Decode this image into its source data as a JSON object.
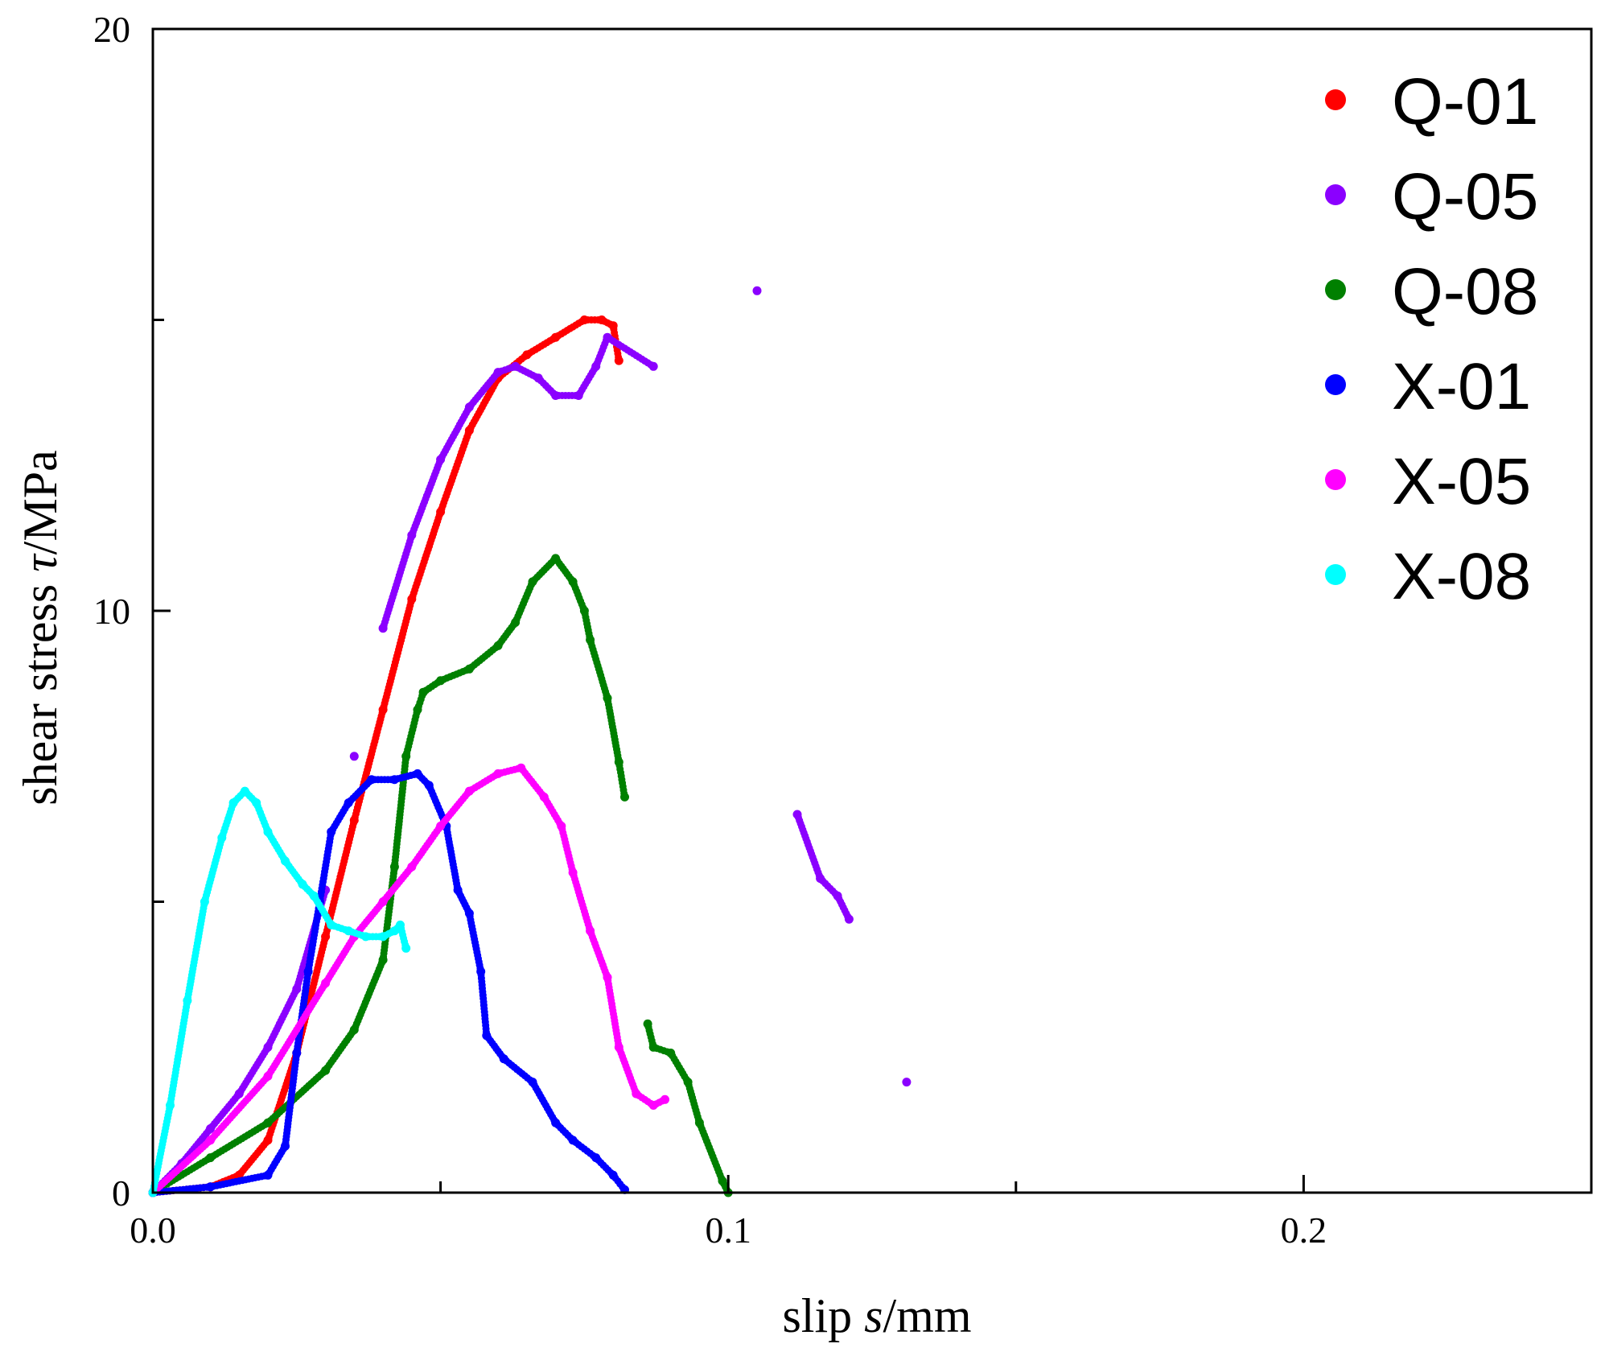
{
  "chart_data": {
    "type": "scatter",
    "title": "",
    "xlabel_parts": [
      "slip ",
      "s",
      "/mm"
    ],
    "ylabel_parts": [
      "shear stress ",
      "τ",
      "/MPa"
    ],
    "xlim": [
      0,
      0.25
    ],
    "ylim": [
      0,
      20
    ],
    "x_ticks": [
      {
        "value": 0,
        "label": "0.0"
      },
      {
        "value": 0.1,
        "label": "0.1"
      },
      {
        "value": 0.2,
        "label": "0.2"
      }
    ],
    "x_minor_ticks": [
      0.05,
      0.15
    ],
    "y_ticks": [
      {
        "value": 0,
        "label": "0"
      },
      {
        "value": 10,
        "label": "10"
      },
      {
        "value": 20,
        "label": "20"
      }
    ],
    "y_minor_ticks": [
      5,
      15
    ],
    "grid": false,
    "legend_position": "top-right",
    "series": [
      {
        "name": "Q-01",
        "color": "#ff0000",
        "points": [
          [
            0,
            0
          ],
          [
            0.01,
            0.1
          ],
          [
            0.015,
            0.3
          ],
          [
            0.02,
            0.9
          ],
          [
            0.025,
            2.4
          ],
          [
            0.03,
            4.4
          ],
          [
            0.035,
            6.4
          ],
          [
            0.04,
            8.3
          ],
          [
            0.045,
            10.2
          ],
          [
            0.05,
            11.7
          ],
          [
            0.055,
            13.1
          ],
          [
            0.06,
            14.0
          ],
          [
            0.065,
            14.4
          ],
          [
            0.07,
            14.7
          ],
          [
            0.075,
            15.0
          ],
          [
            0.078,
            15.0
          ],
          [
            0.08,
            14.9
          ],
          [
            0.081,
            14.3
          ]
        ]
      },
      {
        "name": "Q-05",
        "color": "#8b00ff",
        "points": [
          [
            0,
            0
          ],
          [
            0.005,
            0.5
          ],
          [
            0.01,
            1.1
          ],
          [
            0.015,
            1.7
          ],
          [
            0.02,
            2.5
          ],
          [
            0.025,
            3.5
          ],
          [
            0.03,
            5.2
          ],
          [
            0.035,
            7.5
          ],
          [
            0.04,
            9.7
          ],
          [
            0.045,
            11.3
          ],
          [
            0.05,
            12.6
          ],
          [
            0.055,
            13.5
          ],
          [
            0.06,
            14.1
          ],
          [
            0.063,
            14.2
          ],
          [
            0.067,
            14.0
          ],
          [
            0.07,
            13.7
          ],
          [
            0.074,
            13.7
          ],
          [
            0.077,
            14.2
          ],
          [
            0.079,
            14.7
          ],
          [
            0.087,
            14.2
          ],
          [
            0.105,
            15.5
          ],
          [
            0.112,
            6.5
          ],
          [
            0.116,
            5.4
          ],
          [
            0.119,
            5.1
          ],
          [
            0.121,
            4.7
          ],
          [
            0.131,
            1.9
          ]
        ]
      },
      {
        "name": "Q-08",
        "color": "#008000",
        "points": [
          [
            0,
            0
          ],
          [
            0.01,
            0.6
          ],
          [
            0.02,
            1.2
          ],
          [
            0.03,
            2.1
          ],
          [
            0.035,
            2.8
          ],
          [
            0.04,
            4.0
          ],
          [
            0.042,
            5.6
          ],
          [
            0.044,
            7.5
          ],
          [
            0.046,
            8.3
          ],
          [
            0.047,
            8.6
          ],
          [
            0.05,
            8.8
          ],
          [
            0.055,
            9.0
          ],
          [
            0.06,
            9.4
          ],
          [
            0.063,
            9.8
          ],
          [
            0.066,
            10.5
          ],
          [
            0.07,
            10.9
          ],
          [
            0.073,
            10.5
          ],
          [
            0.075,
            10.0
          ],
          [
            0.076,
            9.5
          ],
          [
            0.079,
            8.5
          ],
          [
            0.081,
            7.4
          ],
          [
            0.082,
            6.8
          ],
          [
            0.086,
            2.9
          ],
          [
            0.087,
            2.5
          ],
          [
            0.09,
            2.4
          ],
          [
            0.093,
            1.9
          ],
          [
            0.095,
            1.2
          ],
          [
            0.099,
            0.2
          ],
          [
            0.1,
            0
          ]
        ]
      },
      {
        "name": "X-01",
        "color": "#0000ff",
        "points": [
          [
            0,
            0
          ],
          [
            0.01,
            0.1
          ],
          [
            0.02,
            0.3
          ],
          [
            0.023,
            0.8
          ],
          [
            0.025,
            2.4
          ],
          [
            0.027,
            3.8
          ],
          [
            0.029,
            5.0
          ],
          [
            0.031,
            6.2
          ],
          [
            0.034,
            6.7
          ],
          [
            0.038,
            7.1
          ],
          [
            0.042,
            7.1
          ],
          [
            0.046,
            7.2
          ],
          [
            0.048,
            7.0
          ],
          [
            0.051,
            6.3
          ],
          [
            0.053,
            5.2
          ],
          [
            0.055,
            4.8
          ],
          [
            0.057,
            3.8
          ],
          [
            0.058,
            2.7
          ],
          [
            0.061,
            2.3
          ],
          [
            0.066,
            1.9
          ],
          [
            0.07,
            1.2
          ],
          [
            0.073,
            0.9
          ],
          [
            0.077,
            0.6
          ],
          [
            0.08,
            0.3
          ],
          [
            0.082,
            0.05
          ]
        ]
      },
      {
        "name": "X-05",
        "color": "#ff00ff",
        "points": [
          [
            0,
            0
          ],
          [
            0.01,
            0.9
          ],
          [
            0.02,
            2.0
          ],
          [
            0.03,
            3.6
          ],
          [
            0.035,
            4.4
          ],
          [
            0.04,
            5.0
          ],
          [
            0.045,
            5.6
          ],
          [
            0.05,
            6.3
          ],
          [
            0.055,
            6.9
          ],
          [
            0.06,
            7.2
          ],
          [
            0.064,
            7.3
          ],
          [
            0.068,
            6.8
          ],
          [
            0.071,
            6.3
          ],
          [
            0.073,
            5.5
          ],
          [
            0.076,
            4.5
          ],
          [
            0.079,
            3.7
          ],
          [
            0.081,
            2.5
          ],
          [
            0.084,
            1.7
          ],
          [
            0.087,
            1.5
          ],
          [
            0.089,
            1.6
          ]
        ]
      },
      {
        "name": "X-08",
        "color": "#00ffff",
        "points": [
          [
            0,
            0
          ],
          [
            0.003,
            1.5
          ],
          [
            0.006,
            3.3
          ],
          [
            0.009,
            5.0
          ],
          [
            0.012,
            6.1
          ],
          [
            0.014,
            6.7
          ],
          [
            0.016,
            6.9
          ],
          [
            0.018,
            6.7
          ],
          [
            0.02,
            6.2
          ],
          [
            0.023,
            5.7
          ],
          [
            0.026,
            5.3
          ],
          [
            0.028,
            5.1
          ],
          [
            0.031,
            4.6
          ],
          [
            0.034,
            4.5
          ],
          [
            0.037,
            4.4
          ],
          [
            0.04,
            4.4
          ],
          [
            0.042,
            4.5
          ],
          [
            0.043,
            4.6
          ],
          [
            0.044,
            4.2
          ]
        ]
      }
    ]
  }
}
